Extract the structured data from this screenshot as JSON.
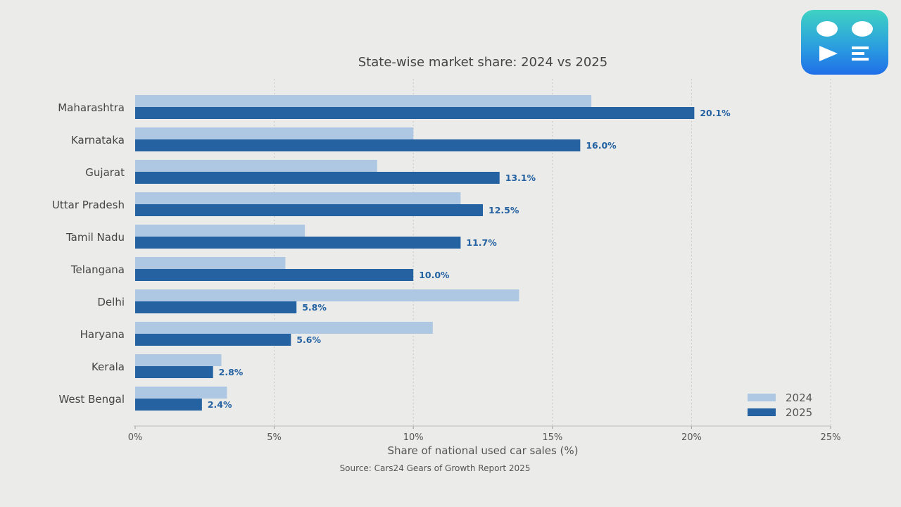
{
  "chart_data": {
    "type": "bar",
    "orientation": "horizontal",
    "title": "State-wise market share: 2024 vs 2025",
    "xlabel": "Share of national used car sales (%)",
    "ylabel": "",
    "source": "Source: Cars24 Gears of Growth Report 2025",
    "xlim": [
      0,
      25
    ],
    "xticks": [
      "0%",
      "5%",
      "10%",
      "15%",
      "20%",
      "25%"
    ],
    "xtick_values": [
      0,
      5,
      10,
      15,
      20,
      25
    ],
    "grid": "vertical dotted",
    "legend_position": "bottom-right",
    "categories": [
      "Maharashtra",
      "Karnataka",
      "Gujarat",
      "Uttar Pradesh",
      "Tamil Nadu",
      "Telangana",
      "Delhi",
      "Haryana",
      "Kerala",
      "West Bengal"
    ],
    "series": [
      {
        "name": "2024",
        "color": "#aec8e4",
        "values": [
          16.4,
          10.0,
          8.7,
          11.7,
          6.1,
          5.4,
          13.8,
          10.7,
          3.1,
          3.3
        ]
      },
      {
        "name": "2025",
        "color": "#2462a1",
        "values": [
          20.1,
          16.0,
          13.1,
          12.5,
          11.7,
          10.0,
          5.8,
          5.6,
          2.8,
          2.4
        ],
        "data_labels": [
          "20.1%",
          "16.0%",
          "13.1%",
          "12.5%",
          "11.7%",
          "10.0%",
          "5.8%",
          "5.6%",
          "2.8%",
          "2.4%"
        ]
      }
    ]
  },
  "logo": {
    "icon": "app-logo-face-play-list"
  }
}
